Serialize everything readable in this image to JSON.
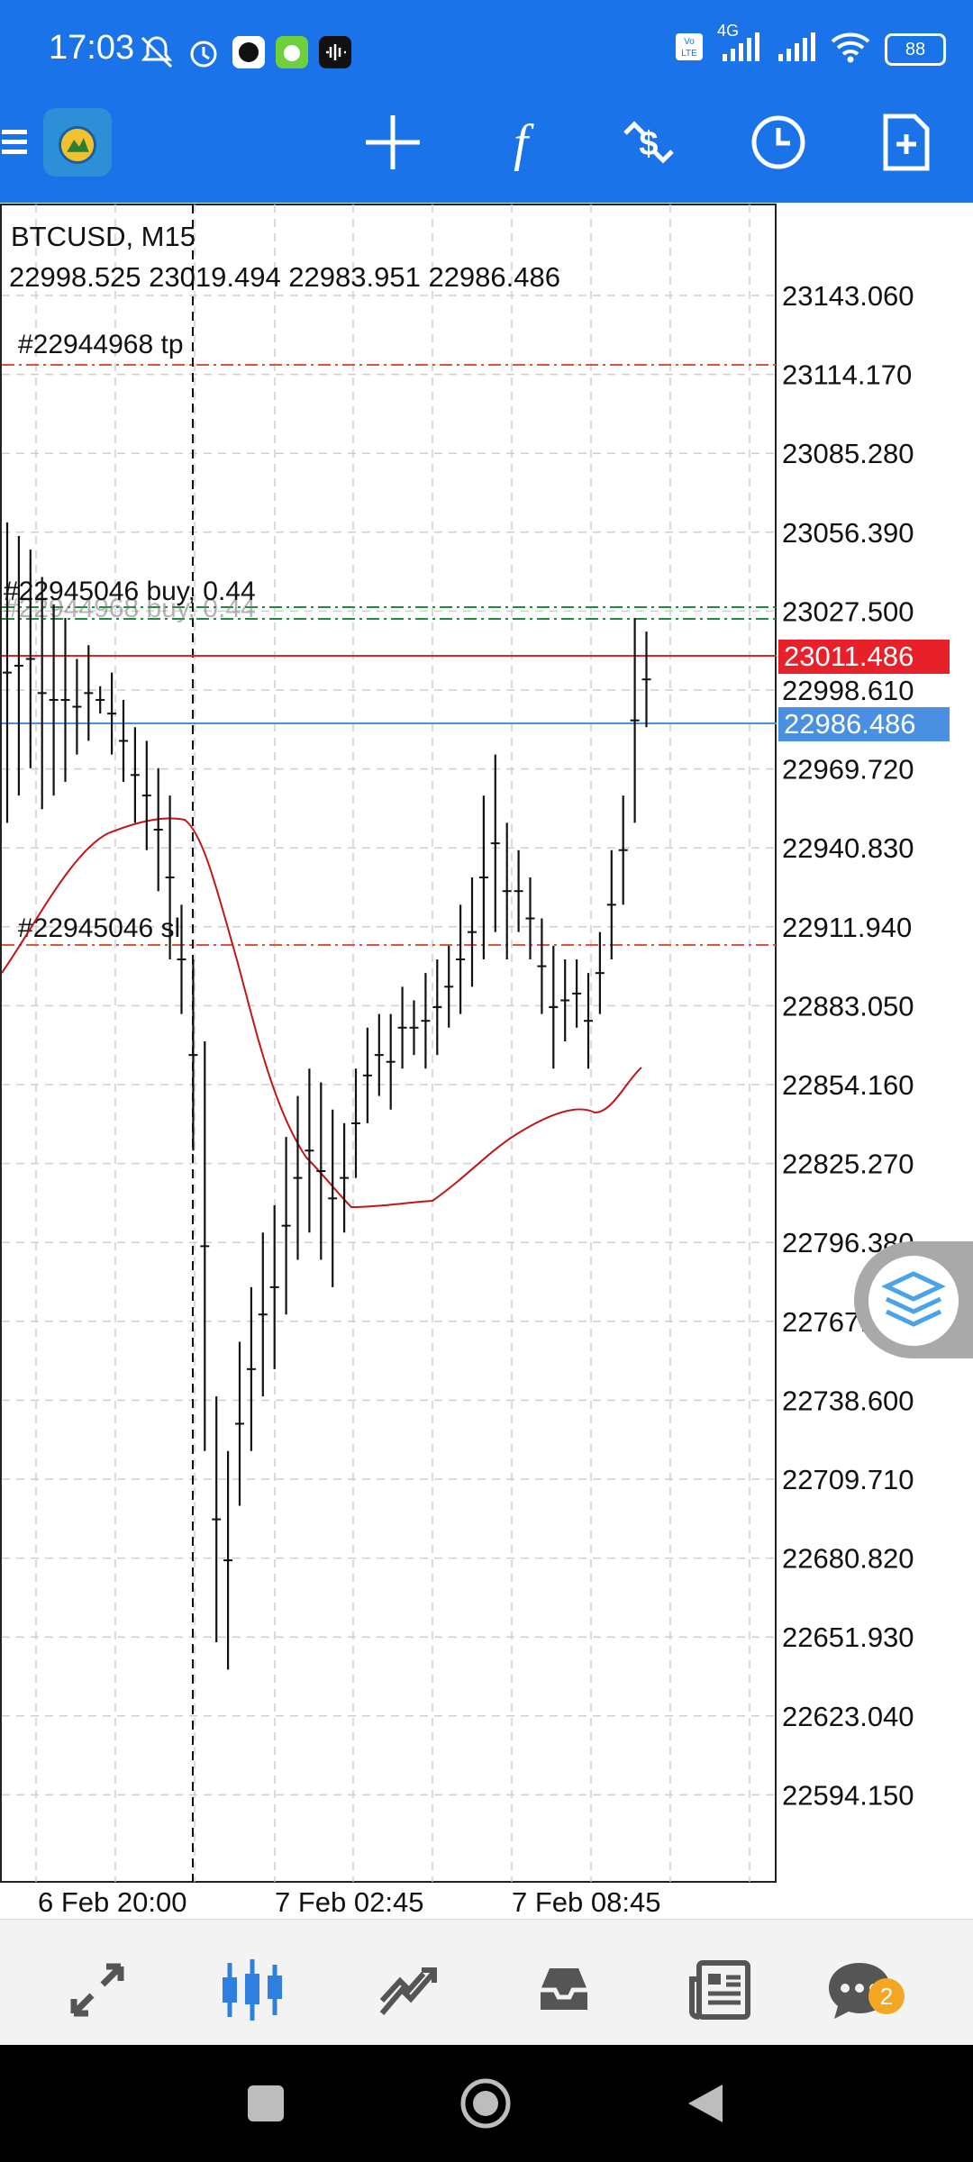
{
  "status_bar": {
    "time": "17:03",
    "network": "4G",
    "battery": "88"
  },
  "toolbar": {
    "icons": [
      "menu-icon",
      "app-logo",
      "crosshair-icon",
      "indicators-icon",
      "trade-icon",
      "history-icon",
      "new-order-icon"
    ]
  },
  "chart": {
    "symbol": "BTCUSD, M15",
    "ohlc": "22998.525 23019.494 22983.951 22986.486",
    "tp_label": "#22944968 tp",
    "buy_label": "#22945046 buy, 0.44",
    "buy_label_ghost": "#22944968 buy, 0.44",
    "sl_label": "#22945046 sl",
    "ask_price": "23011.486",
    "bid_price": "22986.486",
    "price_axis": [
      "23143.060",
      "23114.170",
      "23085.280",
      "23056.390",
      "23027.500",
      "22998.610",
      "22969.720",
      "22940.830",
      "22911.940",
      "22883.050",
      "22854.160",
      "22825.270",
      "22796.380",
      "22767.490",
      "22738.600",
      "22709.710",
      "22680.820",
      "22651.930",
      "22623.040",
      "22594.150"
    ],
    "time_axis": [
      "6 Feb 20:00",
      "7 Feb 02:45",
      "7 Feb 08:45"
    ],
    "colors": {
      "ask": "#E8202A",
      "bid": "#4A90E2",
      "ma": "#C0161B",
      "level_orange": "#E0553A",
      "level_green": "#1E8C3A"
    }
  },
  "chart_data": {
    "type": "candlestick",
    "symbol": "BTCUSD",
    "timeframe": "M15",
    "ylim": [
      22580,
      23160
    ],
    "x": [
      "6 Feb 20:00",
      "7 Feb 02:45",
      "7 Feb 08:45"
    ],
    "levels": {
      "tp": 23114.2,
      "buy": 23020.0,
      "sl": 22911.0,
      "ask": 23011.486,
      "bid": 22986.486
    },
    "bars_highlow": [
      [
        23060,
        22950
      ],
      [
        23055,
        22960
      ],
      [
        23050,
        22970
      ],
      [
        23040,
        22955
      ],
      [
        23030,
        22960
      ],
      [
        23025,
        22965
      ],
      [
        23010,
        22975
      ],
      [
        23015,
        22980
      ],
      [
        23000,
        22990
      ],
      [
        23005,
        22975
      ],
      [
        22995,
        22965
      ],
      [
        22985,
        22950
      ],
      [
        22980,
        22940
      ],
      [
        22970,
        22925
      ],
      [
        22960,
        22900
      ],
      [
        22920,
        22880
      ],
      [
        22900,
        22830
      ],
      [
        22870,
        22720
      ],
      [
        22740,
        22650
      ],
      [
        22720,
        22640
      ],
      [
        22760,
        22700
      ],
      [
        22780,
        22720
      ],
      [
        22800,
        22740
      ],
      [
        22810,
        22750
      ],
      [
        22835,
        22770
      ],
      [
        22850,
        22790
      ],
      [
        22860,
        22800
      ],
      [
        22855,
        22790
      ],
      [
        22845,
        22780
      ],
      [
        22840,
        22800
      ],
      [
        22860,
        22820
      ],
      [
        22875,
        22840
      ],
      [
        22880,
        22850
      ],
      [
        22880,
        22845
      ],
      [
        22890,
        22860
      ],
      [
        22885,
        22865
      ],
      [
        22895,
        22860
      ],
      [
        22900,
        22865
      ],
      [
        22905,
        22875
      ],
      [
        22920,
        22880
      ],
      [
        22930,
        22890
      ],
      [
        22960,
        22900
      ],
      [
        22975,
        22910
      ],
      [
        22950,
        22900
      ],
      [
        22940,
        22910
      ],
      [
        22930,
        22900
      ],
      [
        22915,
        22880
      ],
      [
        22905,
        22860
      ],
      [
        22900,
        22870
      ],
      [
        22900,
        22875
      ],
      [
        22895,
        22860
      ],
      [
        22910,
        22880
      ],
      [
        22940,
        22900
      ],
      [
        22960,
        22920
      ],
      [
        23025,
        22950
      ],
      [
        23020,
        22985
      ]
    ]
  }
}
